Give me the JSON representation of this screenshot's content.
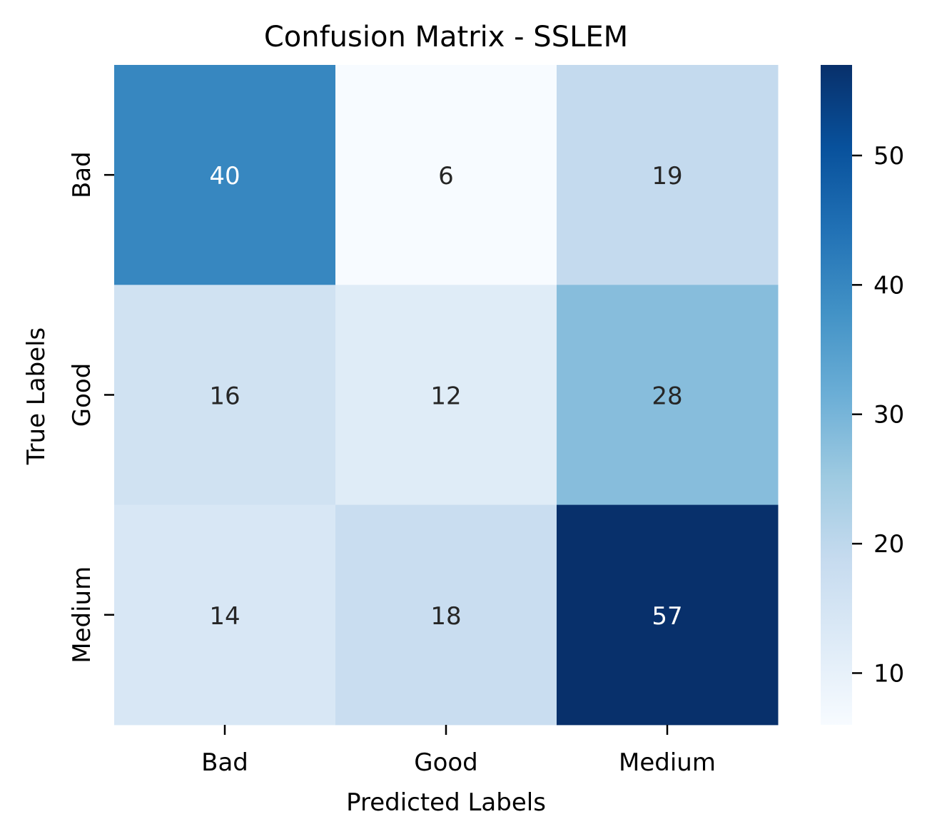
{
  "chart_data": {
    "type": "heatmap",
    "title": "Confusion Matrix - SSLEM",
    "xlabel": "Predicted Labels",
    "ylabel": "True Labels",
    "x_categories": [
      "Bad",
      "Good",
      "Medium"
    ],
    "y_categories": [
      "Bad",
      "Good",
      "Medium"
    ],
    "values": [
      [
        40,
        6,
        19
      ],
      [
        16,
        12,
        28
      ],
      [
        14,
        18,
        57
      ]
    ],
    "colormap": "Blues",
    "color_range": [
      6,
      57
    ],
    "colorbar_ticks": [
      10,
      20,
      30,
      40,
      50
    ],
    "colorbar_tick_labels": [
      "10",
      "20",
      "30",
      "40",
      "50"
    ],
    "annot_dark_color": "#262626",
    "annot_light_color": "#ffffff"
  }
}
